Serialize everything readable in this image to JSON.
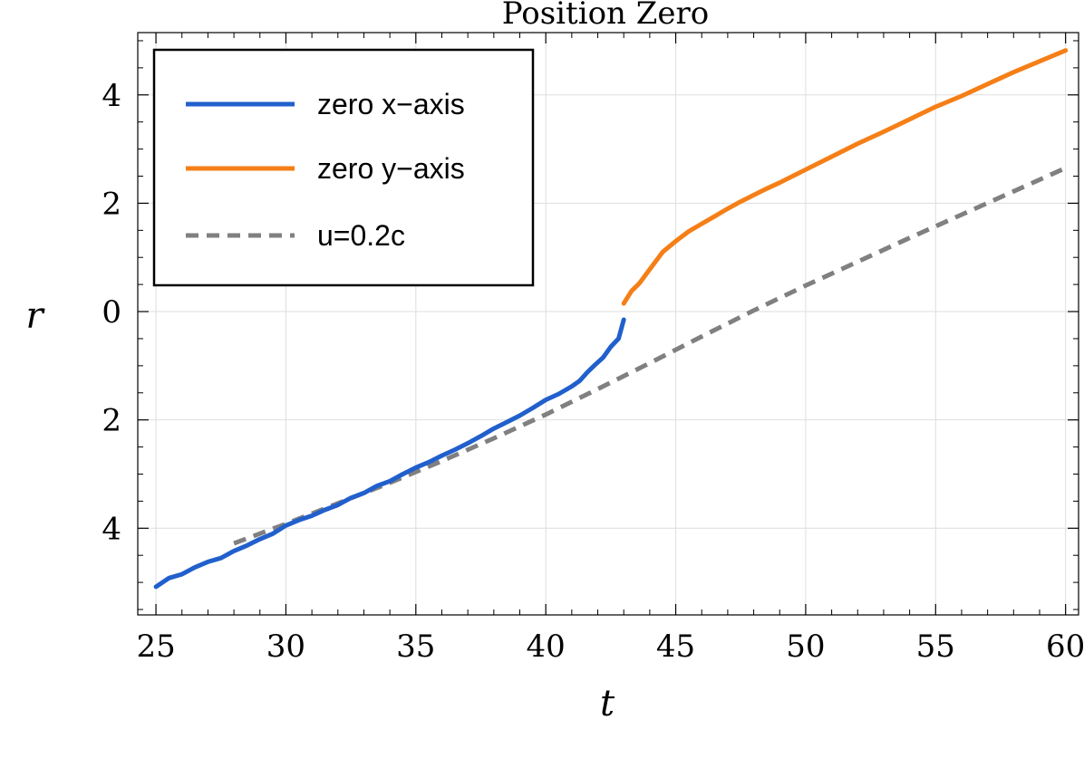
{
  "chart_data": {
    "type": "line",
    "title": "Position Zero",
    "xlabel": "t",
    "ylabel": "r",
    "xlim": [
      24.3,
      60.5
    ],
    "ylim": [
      -5.6,
      5.15
    ],
    "x_ticks": [
      25,
      30,
      35,
      40,
      45,
      50,
      55,
      60
    ],
    "y_ticks": [
      4,
      2,
      0,
      -2,
      -4
    ],
    "y_tick_labels": [
      "4",
      "2",
      "0",
      "2",
      "4"
    ],
    "grid": true,
    "legend": {
      "position": "top-left",
      "entries": [
        {
          "label": "zero x−axis",
          "color": "#2160cc",
          "style": "solid"
        },
        {
          "label": "zero y−axis",
          "color": "#f57f17",
          "style": "solid"
        },
        {
          "label": "u=0.2c",
          "color": "#808080",
          "style": "dashed"
        }
      ]
    },
    "series": [
      {
        "name": "zero x−axis",
        "color": "#2160cc",
        "style": "solid",
        "x": [
          25,
          25.5,
          26,
          26.5,
          27,
          27.5,
          28,
          28.5,
          29,
          29.5,
          30,
          30.5,
          31,
          31.5,
          32,
          32.5,
          33,
          33.5,
          34,
          34.5,
          35,
          35.5,
          36,
          36.5,
          37,
          37.5,
          38,
          38.5,
          39,
          39.5,
          40,
          40.5,
          41,
          41.3,
          41.6,
          41.9,
          42.2,
          42.5,
          42.8,
          43
        ],
        "y": [
          -5.08,
          -4.92,
          -4.85,
          -4.72,
          -4.62,
          -4.55,
          -4.42,
          -4.32,
          -4.2,
          -4.1,
          -3.95,
          -3.85,
          -3.77,
          -3.66,
          -3.57,
          -3.44,
          -3.35,
          -3.22,
          -3.13,
          -3.0,
          -2.88,
          -2.78,
          -2.66,
          -2.55,
          -2.43,
          -2.3,
          -2.16,
          -2.04,
          -1.92,
          -1.78,
          -1.63,
          -1.52,
          -1.38,
          -1.28,
          -1.12,
          -0.98,
          -0.85,
          -0.65,
          -0.5,
          -0.15
        ]
      },
      {
        "name": "zero y−axis",
        "color": "#f57f17",
        "style": "solid",
        "x": [
          43,
          43.3,
          43.6,
          44,
          44.5,
          45,
          45.5,
          46,
          46.5,
          47,
          47.5,
          48,
          48.5,
          49,
          49.5,
          50,
          51,
          52,
          53,
          54,
          55,
          56,
          57,
          58,
          59,
          60
        ],
        "y": [
          0.15,
          0.38,
          0.52,
          0.78,
          1.1,
          1.3,
          1.48,
          1.62,
          1.76,
          1.9,
          2.03,
          2.15,
          2.27,
          2.38,
          2.5,
          2.62,
          2.86,
          3.1,
          3.32,
          3.55,
          3.78,
          3.98,
          4.2,
          4.42,
          4.62,
          4.82
        ]
      },
      {
        "name": "u=0.2c",
        "color": "#808080",
        "style": "dashed",
        "x": [
          28,
          30,
          32,
          34,
          36,
          38,
          40,
          42,
          44,
          46,
          48,
          50,
          52,
          54,
          56,
          58,
          60
        ],
        "y": [
          -4.28,
          -3.92,
          -3.54,
          -3.16,
          -2.76,
          -2.34,
          -1.9,
          -1.43,
          -0.95,
          -0.46,
          0.02,
          0.48,
          0.92,
          1.36,
          1.79,
          2.22,
          2.65
        ]
      }
    ]
  }
}
